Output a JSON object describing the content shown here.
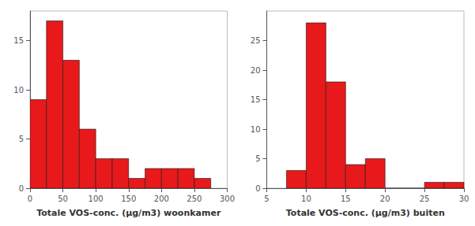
{
  "chart_data": [
    {
      "type": "histogram",
      "xlabel": "Totale VOS-conc. (μg/m3) woonkamer",
      "bins": [
        0,
        25,
        50,
        75,
        100,
        125,
        150,
        175,
        200,
        225,
        250,
        275
      ],
      "values": [
        9,
        17,
        13,
        6,
        3,
        3,
        1,
        2,
        2,
        2,
        1
      ],
      "color": "#e8191a",
      "xlim": [
        0,
        300
      ],
      "ylim": [
        0,
        18
      ],
      "xticks": [
        0,
        50,
        100,
        150,
        200,
        250,
        300
      ],
      "yticks": [
        0,
        5,
        10,
        15
      ],
      "grid": false
    },
    {
      "type": "histogram",
      "xlabel": "Totale VOS-conc. (μg/m3) buiten",
      "bins": [
        7.5,
        10,
        12.5,
        15,
        17.5,
        20,
        22.5,
        25,
        27.5,
        30
      ],
      "values": [
        3,
        28,
        18,
        4,
        5,
        0,
        0,
        1,
        1
      ],
      "color": "#e8191a",
      "xlim": [
        5,
        30
      ],
      "ylim": [
        0,
        30
      ],
      "xticks": [
        5,
        10,
        15,
        20,
        25,
        30
      ],
      "yticks": [
        0,
        5,
        10,
        15,
        20,
        25
      ],
      "grid": false
    }
  ]
}
